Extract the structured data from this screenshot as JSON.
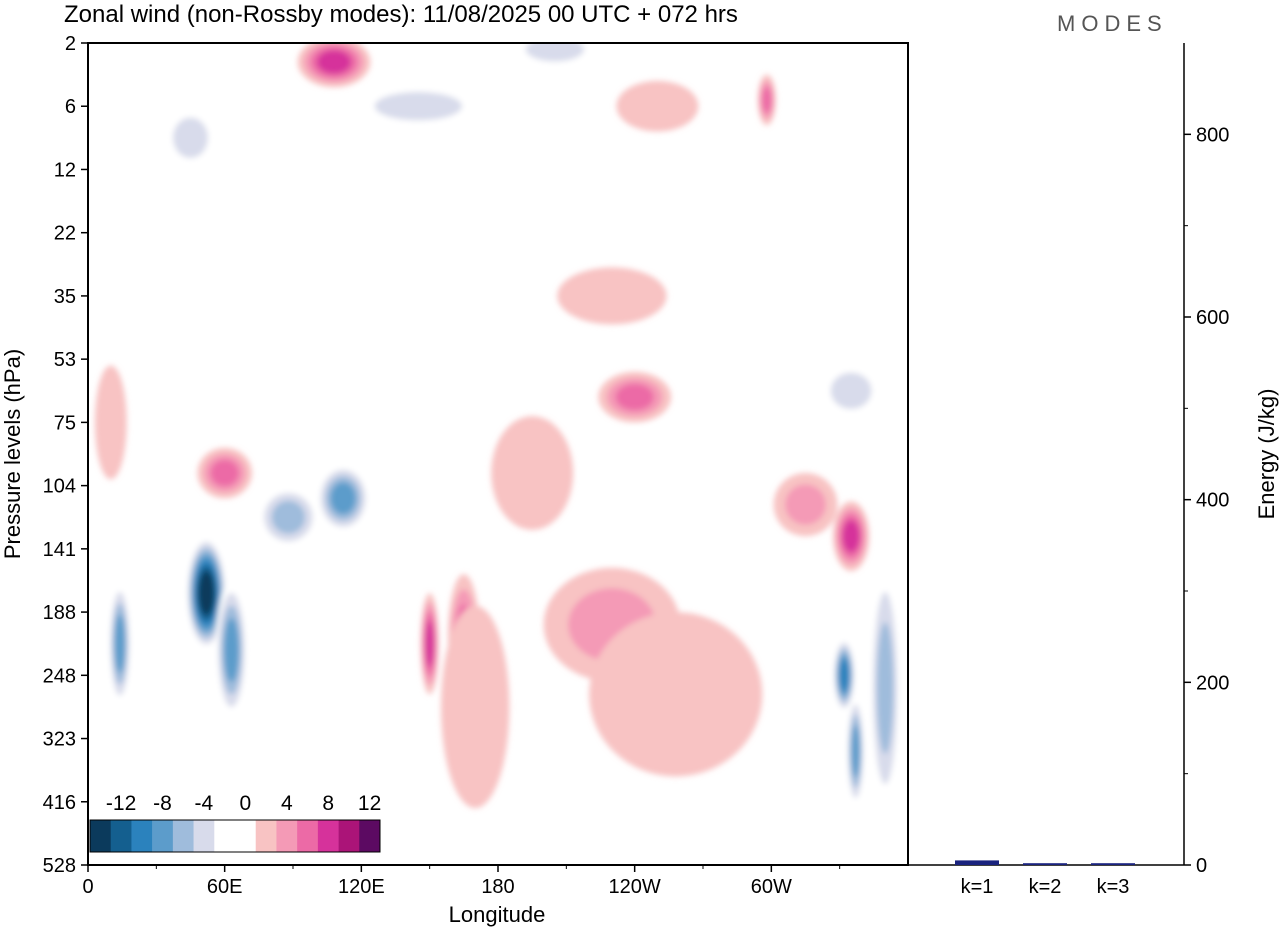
{
  "title": "Zonal wind (non-Rossby modes):  11/08/2025  00 UTC  + 072 hrs",
  "logo": "MODES",
  "chart_data": [
    {
      "type": "heatmap",
      "title": "Zonal wind (non-Rossby modes):  11/08/2025  00 UTC  + 072 hrs",
      "xlabel": "Longitude",
      "ylabel": "Pressure levels (hPa)",
      "x_ticks": [
        {
          "lon": 0,
          "label": "0"
        },
        {
          "lon": 60,
          "label": "60E"
        },
        {
          "lon": 120,
          "label": "120E"
        },
        {
          "lon": 180,
          "label": "180"
        },
        {
          "lon": 240,
          "label": "120W"
        },
        {
          "lon": 300,
          "label": "60W"
        }
      ],
      "x_range": [
        0,
        360
      ],
      "y_ticks": [
        "2",
        "6",
        "12",
        "22",
        "35",
        "53",
        "75",
        "104",
        "141",
        "188",
        "248",
        "323",
        "416",
        "528"
      ],
      "colorbar": {
        "labels": [
          "-12",
          "-8",
          "-4",
          "0",
          "4",
          "8",
          "12"
        ],
        "levels": [
          -14,
          -12,
          -10,
          -8,
          -6,
          -4,
          -2,
          0,
          2,
          4,
          6,
          8,
          10,
          12,
          14
        ],
        "colors": [
          "#0b3a5c",
          "#145f8f",
          "#2b82bd",
          "#5c9ccb",
          "#9fbcdc",
          "#d8dbeb",
          "#ffffff",
          "#ffffff",
          "#f8c3c3",
          "#f49ab6",
          "#ec6aa6",
          "#d6329b",
          "#ab1478",
          "#5c0a62"
        ]
      },
      "blobs": [
        {
          "lon": 52,
          "lev": 8.7,
          "rx": 9,
          "ry": 0.9,
          "value": -14
        },
        {
          "lon": 63,
          "lev": 9.6,
          "rx": 7,
          "ry": 1.1,
          "value": -8
        },
        {
          "lon": 14,
          "lev": 9.5,
          "rx": 5,
          "ry": 1.0,
          "value": -8
        },
        {
          "lon": 112,
          "lev": 7.2,
          "rx": 12,
          "ry": 0.55,
          "value": -8
        },
        {
          "lon": 88,
          "lev": 7.5,
          "rx": 14,
          "ry": 0.5,
          "value": -6
        },
        {
          "lon": 332,
          "lev": 10.0,
          "rx": 5,
          "ry": 0.6,
          "value": -10
        },
        {
          "lon": 337,
          "lev": 11.2,
          "rx": 4,
          "ry": 0.9,
          "value": -8
        },
        {
          "lon": 350,
          "lev": 10.2,
          "rx": 7,
          "ry": 2.0,
          "value": -6
        },
        {
          "lon": 335,
          "lev": 5.5,
          "rx": 14,
          "ry": 0.45,
          "value": -4
        },
        {
          "lon": 252,
          "lev": 6.5,
          "rx": 22,
          "ry": 0.45,
          "value": -2
        },
        {
          "lon": 145,
          "lev": 1.0,
          "rx": 30,
          "ry": 0.35,
          "value": -4
        },
        {
          "lon": 205,
          "lev": 0.1,
          "rx": 20,
          "ry": 0.3,
          "value": -4
        },
        {
          "lon": 140,
          "lev": 3.3,
          "rx": 28,
          "ry": 0.6,
          "value": -2
        },
        {
          "lon": 45,
          "lev": 1.5,
          "rx": 12,
          "ry": 0.5,
          "value": -4
        },
        {
          "lon": 150,
          "lev": 9.5,
          "rx": 4,
          "ry": 0.8,
          "value": 8
        },
        {
          "lon": 165,
          "lev": 9.4,
          "rx": 7,
          "ry": 1.0,
          "value": 6
        },
        {
          "lon": 170,
          "lev": 10.5,
          "rx": 15,
          "ry": 1.6,
          "value": 2
        },
        {
          "lon": 230,
          "lev": 9.2,
          "rx": 30,
          "ry": 0.9,
          "value": 4
        },
        {
          "lon": 258,
          "lev": 10.3,
          "rx": 38,
          "ry": 1.3,
          "value": 2
        },
        {
          "lon": 335,
          "lev": 7.8,
          "rx": 8,
          "ry": 0.55,
          "value": 8
        },
        {
          "lon": 315,
          "lev": 7.3,
          "rx": 14,
          "ry": 0.5,
          "value": 4
        },
        {
          "lon": 240,
          "lev": 5.6,
          "rx": 16,
          "ry": 0.4,
          "value": 6
        },
        {
          "lon": 195,
          "lev": 6.8,
          "rx": 18,
          "ry": 0.9,
          "value": 2
        },
        {
          "lon": 230,
          "lev": 4.0,
          "rx": 24,
          "ry": 0.45,
          "value": 2
        },
        {
          "lon": 60,
          "lev": 6.8,
          "rx": 12,
          "ry": 0.4,
          "value": 6
        },
        {
          "lon": 108,
          "lev": 0.3,
          "rx": 16,
          "ry": 0.4,
          "value": 8
        },
        {
          "lon": 250,
          "lev": 1.0,
          "rx": 18,
          "ry": 0.4,
          "value": 2
        },
        {
          "lon": 298,
          "lev": 0.9,
          "rx": 4,
          "ry": 0.4,
          "value": 6
        },
        {
          "lon": 10,
          "lev": 6.0,
          "rx": 7,
          "ry": 0.9,
          "value": 2
        }
      ]
    },
    {
      "type": "bar",
      "categories": [
        "k=1",
        "k=2",
        "k=3"
      ],
      "values": [
        5,
        2,
        2
      ],
      "ylabel": "Energy (J/kg)",
      "y_ticks": [
        "0",
        "200",
        "400",
        "600",
        "800"
      ],
      "ylim": [
        0,
        900
      ],
      "bar_color": "#1a237e"
    }
  ]
}
